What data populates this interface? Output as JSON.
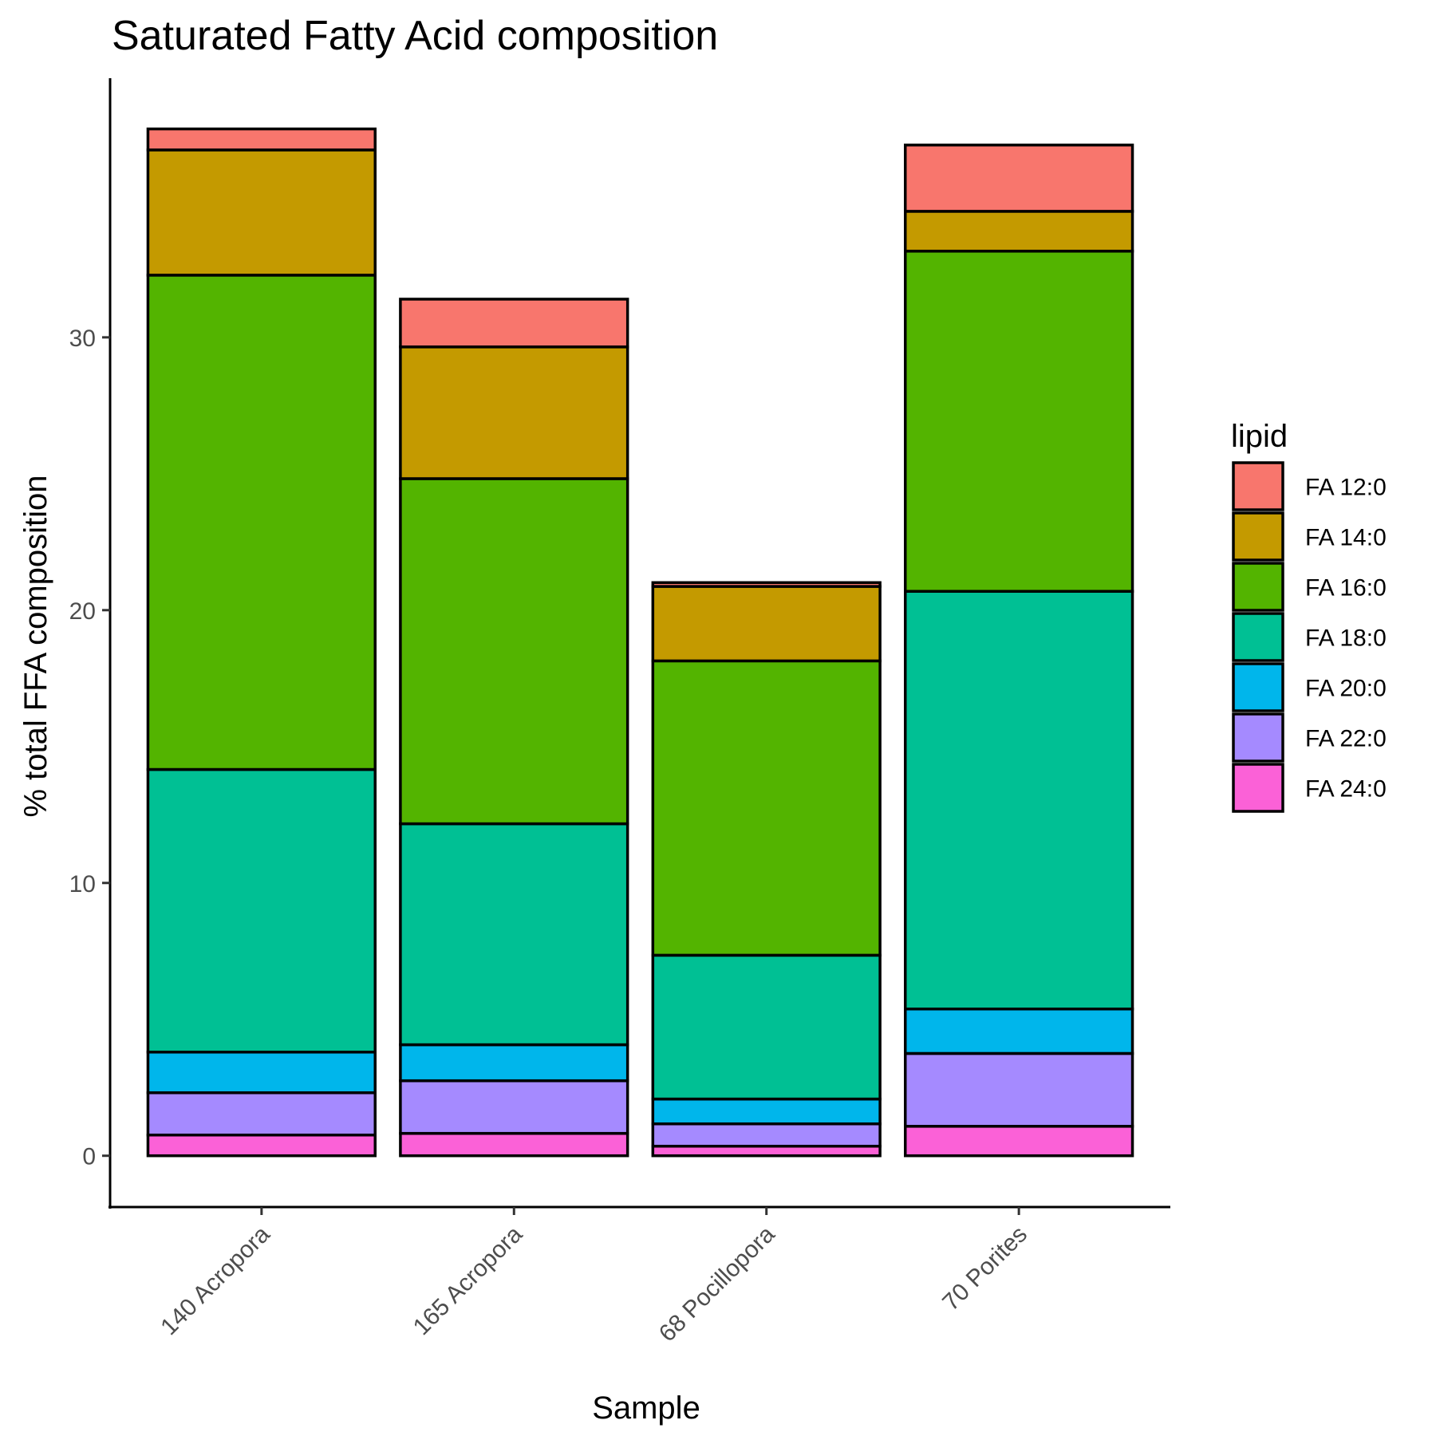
{
  "chart_data": {
    "type": "bar",
    "stacked": true,
    "title": "Saturated Fatty Acid composition",
    "xlabel": "Sample",
    "ylabel": "% total FFA composition",
    "categories": [
      "140 Acropora",
      "165 Acropora",
      "68 Pocillopora",
      "70 Porites"
    ],
    "yticks": [
      0,
      10,
      20,
      30
    ],
    "ylim": [
      -1.88,
      39.5
    ],
    "grid": false,
    "legend": {
      "title": "lipid",
      "position": "right"
    },
    "series": [
      {
        "name": "FA 12:0",
        "color": "#F8766D",
        "values": [
          0.77,
          1.75,
          0.14,
          2.43
        ]
      },
      {
        "name": "FA 14:0",
        "color": "#C49A00",
        "values": [
          4.59,
          4.83,
          2.73,
          1.46
        ]
      },
      {
        "name": "FA 16:0",
        "color": "#53B400",
        "values": [
          18.12,
          12.65,
          10.79,
          12.47
        ]
      },
      {
        "name": "FA 18:0",
        "color": "#00C094",
        "values": [
          10.36,
          8.1,
          5.27,
          15.31
        ]
      },
      {
        "name": "FA 20:0",
        "color": "#00B6EB",
        "values": [
          1.49,
          1.32,
          0.91,
          1.63
        ]
      },
      {
        "name": "FA 22:0",
        "color": "#A58AFF",
        "values": [
          1.55,
          1.93,
          0.82,
          2.67
        ]
      },
      {
        "name": "FA 24:0",
        "color": "#FB61D7",
        "values": [
          0.76,
          0.82,
          0.35,
          1.08
        ]
      }
    ]
  }
}
